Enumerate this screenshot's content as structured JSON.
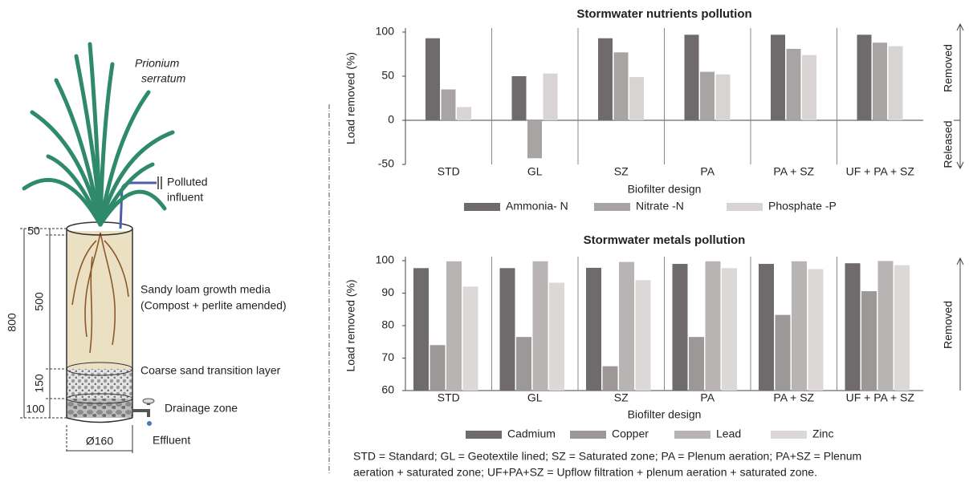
{
  "diagram": {
    "species": [
      "Prionium",
      "serratum"
    ],
    "influent": [
      "Polluted",
      "influent"
    ],
    "dims": {
      "top": "50",
      "media": "500",
      "sand": "150",
      "drain": "100",
      "total": "800",
      "diameter": "Ø160"
    },
    "layers": [
      "Sandy loam growth media",
      "(Compost + perlite amended)",
      "Coarse sand transition layer",
      "Drainage zone"
    ],
    "effluent": "Effluent"
  },
  "chart_data": [
    {
      "type": "bar",
      "title": "Stormwater nutrients pollution",
      "y_label": "Load removed (%)",
      "x_label": "Biofilter design",
      "categories": [
        "STD",
        "GL",
        "SZ",
        "PA",
        "PA + SZ",
        "UF + PA + SZ"
      ],
      "series": [
        {
          "name": "Ammonia- N",
          "color": "#6f6a6b",
          "values": [
            93,
            50,
            93,
            97,
            97,
            97
          ]
        },
        {
          "name": "Nitrate -N",
          "color": "#a8a4a4",
          "values": [
            35,
            -43,
            77,
            55,
            81,
            88
          ]
        },
        {
          "name": "Phosphate -P",
          "color": "#d8d4d3",
          "values": [
            15,
            53,
            49,
            52,
            74,
            84
          ]
        }
      ],
      "ylim": [
        -50,
        100
      ],
      "yticks": [
        -50,
        0,
        50,
        100
      ],
      "annotations": [
        "Removed",
        "Released"
      ]
    },
    {
      "type": "bar",
      "title": "Stormwater metals pollution",
      "y_label": "Load removed (%)",
      "x_label": "Biofilter design",
      "categories": [
        "STD",
        "GL",
        "SZ",
        "PA",
        "PA + SZ",
        "UF + PA + SZ"
      ],
      "series": [
        {
          "name": "Cadmium",
          "color": "#6f6a6b",
          "values": [
            97.7,
            97.7,
            97.8,
            99,
            99,
            99.2
          ]
        },
        {
          "name": "Copper",
          "color": "#9c9898",
          "values": [
            74,
            76.5,
            67.5,
            76.5,
            83.3,
            90.6
          ]
        },
        {
          "name": "Lead",
          "color": "#b8b4b4",
          "values": [
            99.8,
            99.8,
            99.6,
            99.8,
            99.8,
            99.9
          ]
        },
        {
          "name": "Zinc",
          "color": "#dcd8d7",
          "values": [
            92,
            93.2,
            94,
            97.7,
            97.4,
            98.6
          ]
        }
      ],
      "ylim": [
        60,
        100
      ],
      "yticks": [
        60,
        70,
        80,
        90,
        100
      ],
      "annotations": [
        "Removed"
      ]
    }
  ],
  "footnote": [
    "STD = Standard; GL = Geotextile lined; SZ = Saturated zone; PA = Plenum aeration; PA+SZ = Plenum",
    "aeration + saturated zone; UF+PA+SZ = Upflow filtration + plenum aeration + saturated zone."
  ]
}
